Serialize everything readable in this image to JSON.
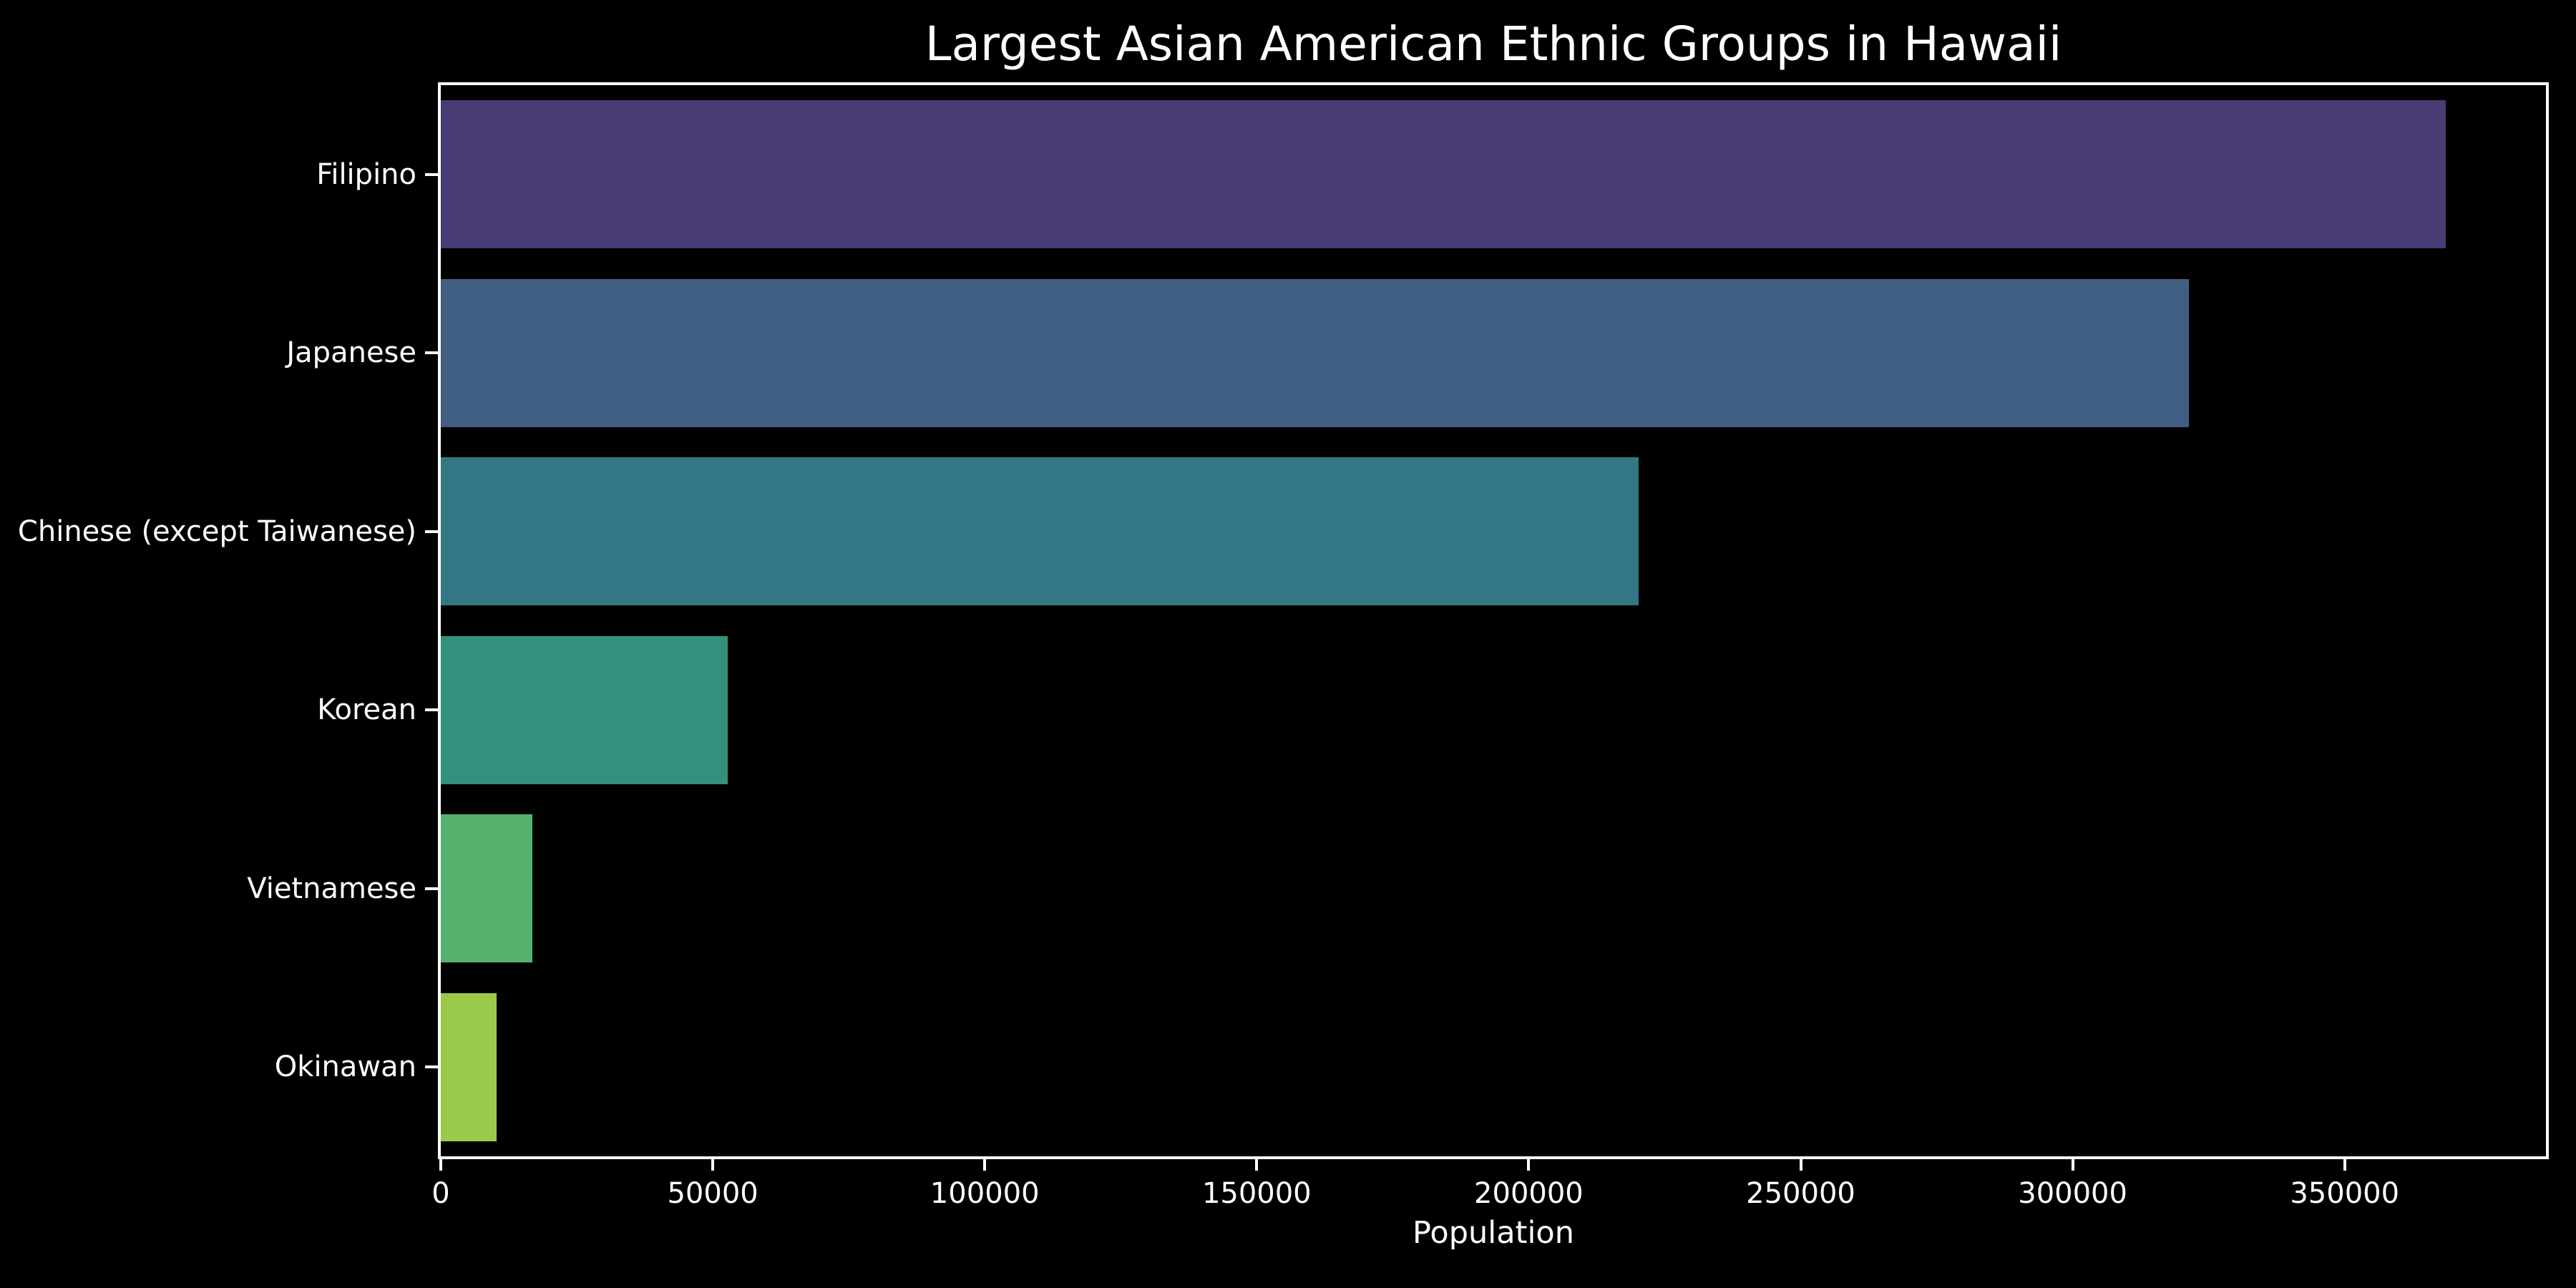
{
  "chart_data": {
    "type": "bar",
    "orientation": "horizontal",
    "title": "Largest Asian American Ethnic Groups in Hawaii",
    "xlabel": "Population",
    "ylabel": "",
    "categories": [
      "Filipino",
      "Japanese",
      "Chinese (except Taiwanese)",
      "Korean",
      "Vietnamese",
      "Okinawan"
    ],
    "values": [
      368600,
      321300,
      220200,
      52700,
      16900,
      10300
    ],
    "bar_colors": [
      "#493B73",
      "#415E83",
      "#337785",
      "#31917E",
      "#57B16E",
      "#9ACA4B"
    ],
    "xlim": [
      0,
      387000
    ],
    "xticks": [
      0,
      50000,
      100000,
      150000,
      200000,
      250000,
      300000,
      350000
    ],
    "xtick_labels": [
      "0",
      "50000",
      "100000",
      "150000",
      "200000",
      "250000",
      "300000",
      "350000"
    ],
    "grid": false,
    "legend": null,
    "background_color": "#000000",
    "text_color": "#ffffff",
    "spine_color": "#ffffff",
    "bar_height_fraction": 0.83
  }
}
